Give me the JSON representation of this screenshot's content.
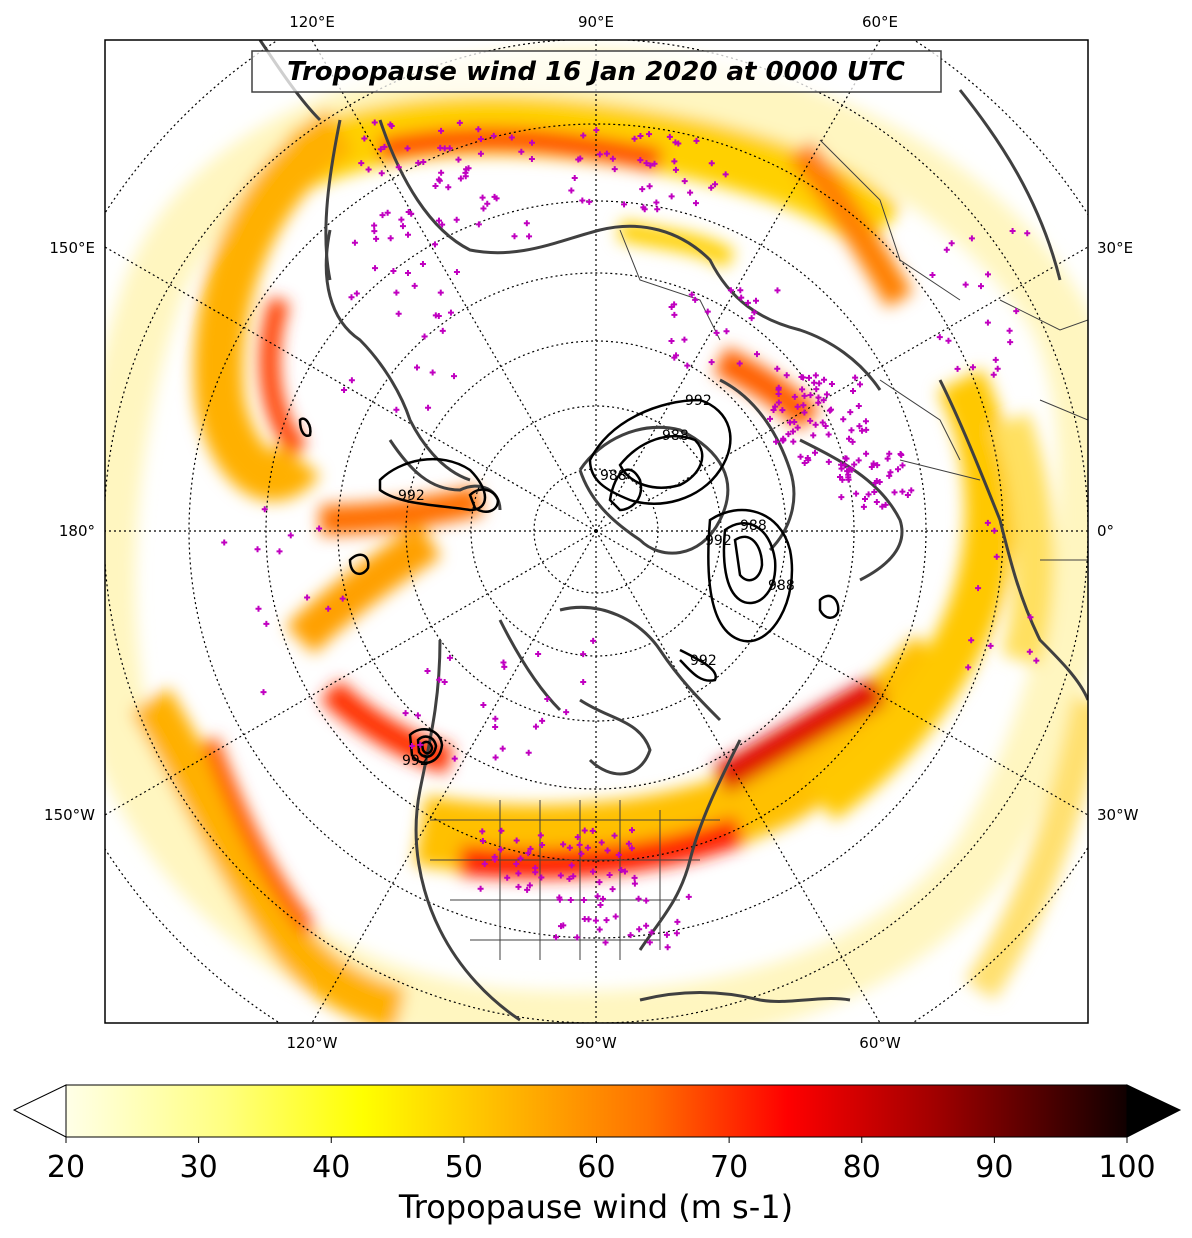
{
  "title": "Tropopause wind 16 Jan 2020 at 0000 UTC",
  "longitude_labels": {
    "top": [
      "120°E",
      "90°E",
      "60°E"
    ],
    "bottom": [
      "120°W",
      "90°W",
      "60°W"
    ],
    "left": [
      "150°E",
      "180°",
      "150°W"
    ],
    "right": [
      "30°E",
      "0°",
      "30°W"
    ]
  },
  "colorbar": {
    "label": "Tropopause wind (m s-1)",
    "min": 20,
    "max": 100,
    "ticks": [
      "20",
      "30",
      "40",
      "50",
      "60",
      "70",
      "80",
      "90",
      "100"
    ],
    "extend": "both",
    "colormap": "hot_r"
  },
  "pressure_contour_labels": [
    "992",
    "988",
    "992",
    "988",
    "988",
    "992",
    "992",
    "988",
    "992"
  ],
  "colors": {
    "coastline": "#404040",
    "stations": "#c000c0",
    "contours": "#000000"
  }
}
